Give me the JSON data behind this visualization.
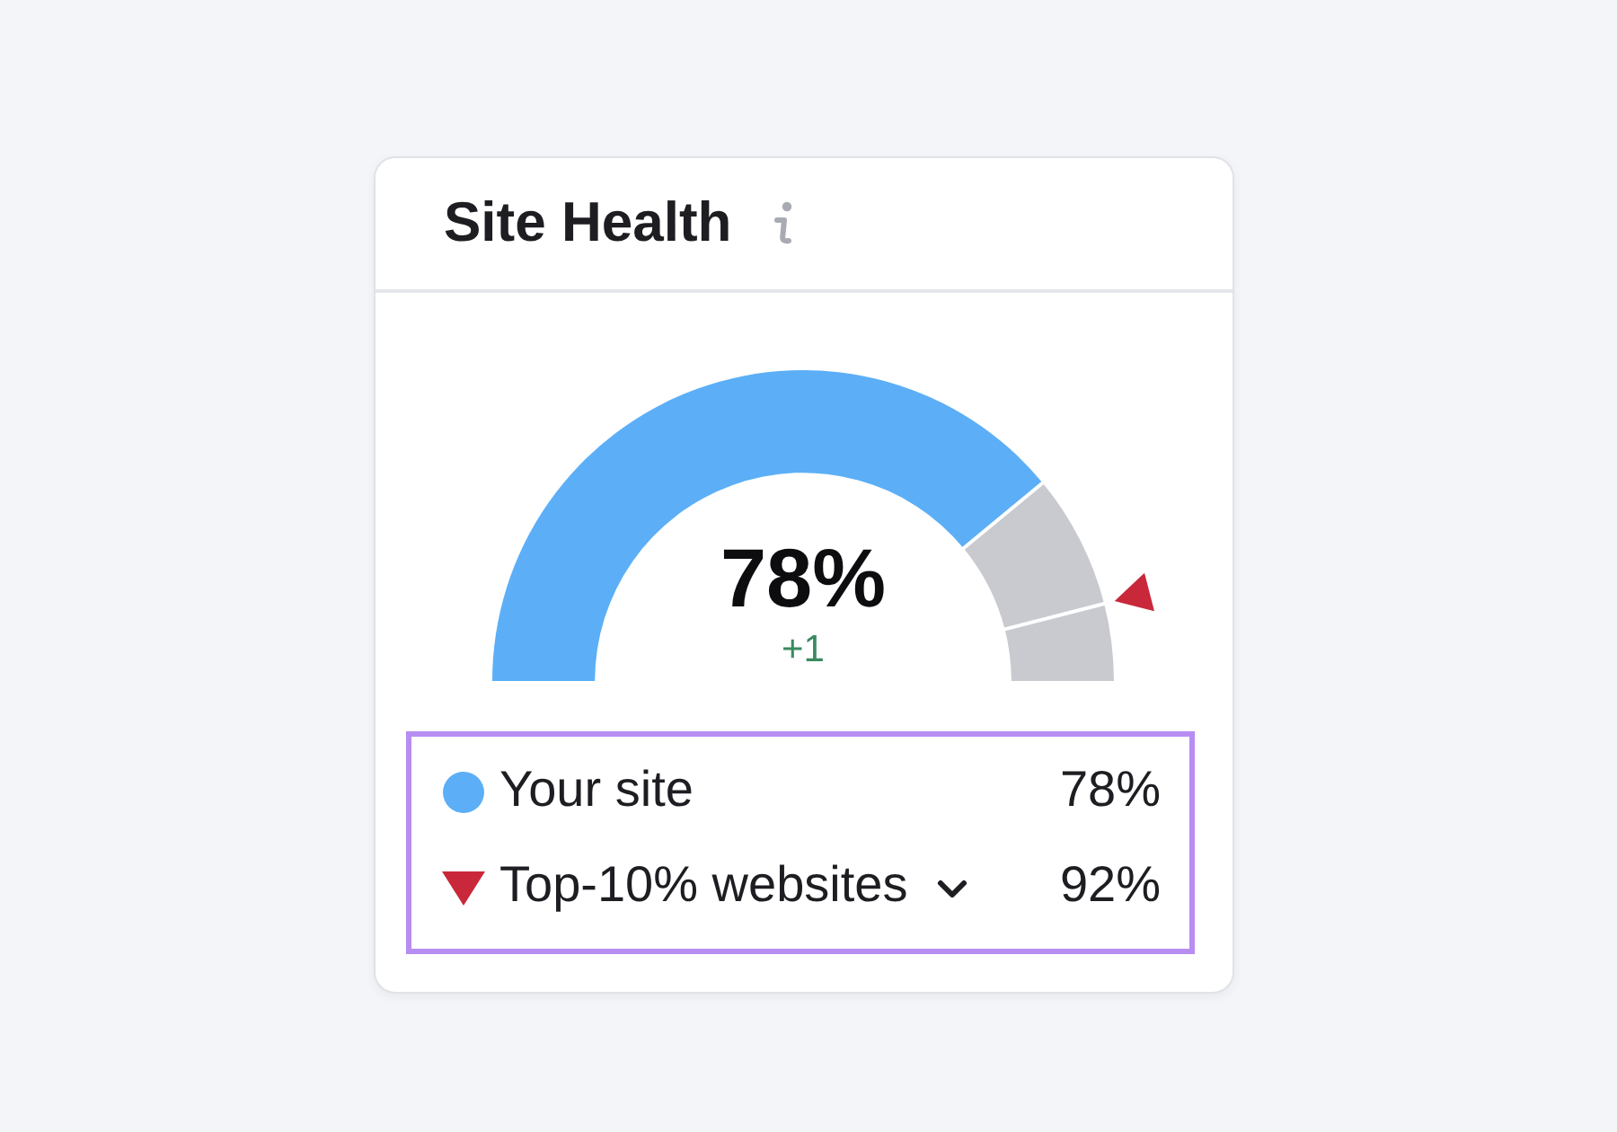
{
  "chart_data": {
    "type": "donut",
    "title": "Site Health",
    "categories": [
      "Your site",
      null,
      null
    ],
    "values": [
      78,
      14,
      8
    ],
    "colors": [
      "#5caff6",
      "#c9cacf",
      "#c9cacf"
    ],
    "value_labels": [
      "78%",
      null,
      null
    ],
    "annotations": [
      "+1",
      "Top-10% websites",
      "92%"
    ],
    "legend": "bottom"
  }
}
